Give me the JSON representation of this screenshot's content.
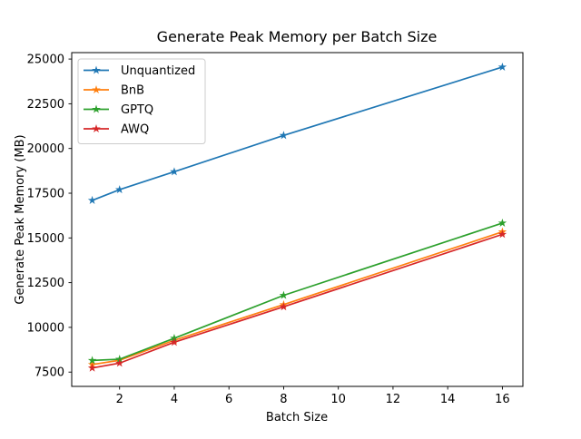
{
  "chart_data": {
    "type": "line",
    "title": "Generate Peak Memory per Batch Size",
    "xlabel": "Batch Size",
    "ylabel": "Generate Peak Memory (MB)",
    "x": [
      1,
      2,
      4,
      8,
      16
    ],
    "series": [
      {
        "name": "Unquantized",
        "color": "#1f77b4",
        "values": [
          17100,
          17700,
          18700,
          20730,
          24550
        ]
      },
      {
        "name": "BnB",
        "color": "#ff7f0e",
        "values": [
          7920,
          8160,
          9280,
          11270,
          15340
        ]
      },
      {
        "name": "GPTQ",
        "color": "#2ca02c",
        "values": [
          8150,
          8220,
          9390,
          11790,
          15830
        ]
      },
      {
        "name": "AWQ",
        "color": "#d62728",
        "values": [
          7730,
          8000,
          9170,
          11150,
          15200
        ]
      }
    ],
    "xticks": [
      2,
      4,
      6,
      8,
      10,
      12,
      14,
      16
    ],
    "yticks": [
      7500,
      10000,
      12500,
      15000,
      17500,
      20000,
      22500,
      25000
    ],
    "xlim": [
      0.25,
      16.75
    ],
    "ylim": [
      6700,
      25360
    ],
    "grid": false,
    "legend_position": "upper left",
    "marker": "star",
    "spine_color": "#000000",
    "legend_border_color": "#cccccc",
    "legend_background": "#ffffff"
  }
}
